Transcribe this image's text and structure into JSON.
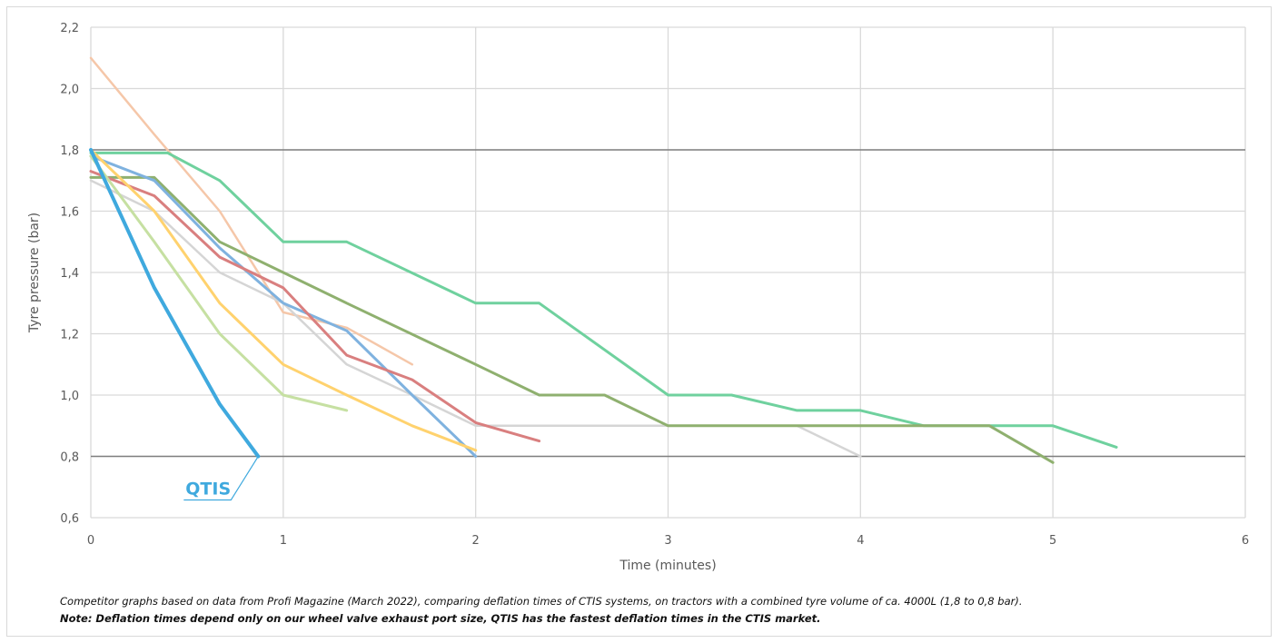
{
  "chart_data": {
    "type": "line",
    "xlabel": "Time (minutes)",
    "ylabel": "Tyre pressure (bar)",
    "xlim": [
      0,
      6
    ],
    "ylim": [
      0.6,
      2.2
    ],
    "x_ticks": [
      "0",
      "1",
      "2",
      "3",
      "4",
      "5",
      "6"
    ],
    "y_ticks": [
      "0,6",
      "0,8",
      "1,0",
      "1,2",
      "1,4",
      "1,6",
      "1,8",
      "2,0",
      "2,2"
    ],
    "grid": true,
    "reference_lines": [
      0.8,
      1.8
    ],
    "annotation": "QTIS",
    "series": [
      {
        "color": "#f5c7a9",
        "width": 2.5,
        "points": [
          [
            0,
            2.1
          ],
          [
            0.33,
            1.85
          ],
          [
            0.67,
            1.6
          ],
          [
            1.0,
            1.27
          ],
          [
            1.33,
            1.22
          ],
          [
            1.67,
            1.1
          ]
        ]
      },
      {
        "color": "#d5d5d5",
        "width": 2.5,
        "points": [
          [
            0,
            1.7
          ],
          [
            0.33,
            1.6
          ],
          [
            0.67,
            1.4
          ],
          [
            1.0,
            1.3
          ],
          [
            1.33,
            1.1
          ],
          [
            1.67,
            1.0
          ],
          [
            2.0,
            0.9
          ],
          [
            3.67,
            0.9
          ],
          [
            4.0,
            0.8
          ]
        ]
      },
      {
        "color": "#6fd19e",
        "width": 3,
        "points": [
          [
            0,
            1.79
          ],
          [
            0.4,
            1.79
          ],
          [
            0.67,
            1.7
          ],
          [
            1.0,
            1.5
          ],
          [
            1.33,
            1.5
          ],
          [
            2.0,
            1.3
          ],
          [
            2.33,
            1.3
          ],
          [
            3.0,
            1.0
          ],
          [
            3.33,
            1.0
          ],
          [
            3.67,
            0.95
          ],
          [
            4.0,
            0.95
          ],
          [
            4.33,
            0.9
          ],
          [
            5.0,
            0.9
          ],
          [
            5.33,
            0.83
          ]
        ]
      },
      {
        "color": "#8fb06f",
        "width": 3,
        "points": [
          [
            0,
            1.71
          ],
          [
            0.33,
            1.71
          ],
          [
            0.67,
            1.5
          ],
          [
            1.0,
            1.4
          ],
          [
            1.33,
            1.3
          ],
          [
            2.0,
            1.1
          ],
          [
            2.33,
            1.0
          ],
          [
            2.67,
            1.0
          ],
          [
            3.0,
            0.9
          ],
          [
            4.67,
            0.9
          ],
          [
            5.0,
            0.78
          ]
        ]
      },
      {
        "color": "#7fb2df",
        "width": 3,
        "points": [
          [
            0,
            1.78
          ],
          [
            0.33,
            1.7
          ],
          [
            0.67,
            1.48
          ],
          [
            1.0,
            1.3
          ],
          [
            1.33,
            1.21
          ],
          [
            1.67,
            1.0
          ],
          [
            2.0,
            0.8
          ]
        ]
      },
      {
        "color": "#d97f7f",
        "width": 3,
        "points": [
          [
            0,
            1.73
          ],
          [
            0.33,
            1.65
          ],
          [
            0.67,
            1.45
          ],
          [
            1.0,
            1.35
          ],
          [
            1.33,
            1.13
          ],
          [
            1.67,
            1.05
          ],
          [
            2.0,
            0.91
          ],
          [
            2.33,
            0.85
          ]
        ]
      },
      {
        "color": "#ffd26e",
        "width": 3,
        "points": [
          [
            0,
            1.8
          ],
          [
            0.33,
            1.6
          ],
          [
            0.67,
            1.3
          ],
          [
            1.0,
            1.1
          ],
          [
            1.33,
            1.0
          ],
          [
            1.67,
            0.9
          ],
          [
            2.0,
            0.82
          ]
        ]
      },
      {
        "color": "#c6e0a2",
        "width": 3,
        "points": [
          [
            0,
            1.78
          ],
          [
            0.33,
            1.5
          ],
          [
            0.67,
            1.2
          ],
          [
            1.0,
            1.0
          ],
          [
            1.33,
            0.95
          ]
        ]
      },
      {
        "color": "#3fa9de",
        "width": 4,
        "points": [
          [
            0,
            1.8
          ],
          [
            0.33,
            1.35
          ],
          [
            0.67,
            0.97
          ],
          [
            0.87,
            0.8
          ]
        ]
      }
    ]
  },
  "captions": {
    "line1": "Competitor graphs based on data from Profi Magazine (March 2022), comparing deflation times of CTIS systems, on tractors with a combined tyre volume of ca. 4000L (1,8 to 0,8 bar).",
    "line2": "Note: Deflation times depend only on our wheel valve exhaust port size, QTIS has the fastest deflation times in the CTIS market."
  }
}
